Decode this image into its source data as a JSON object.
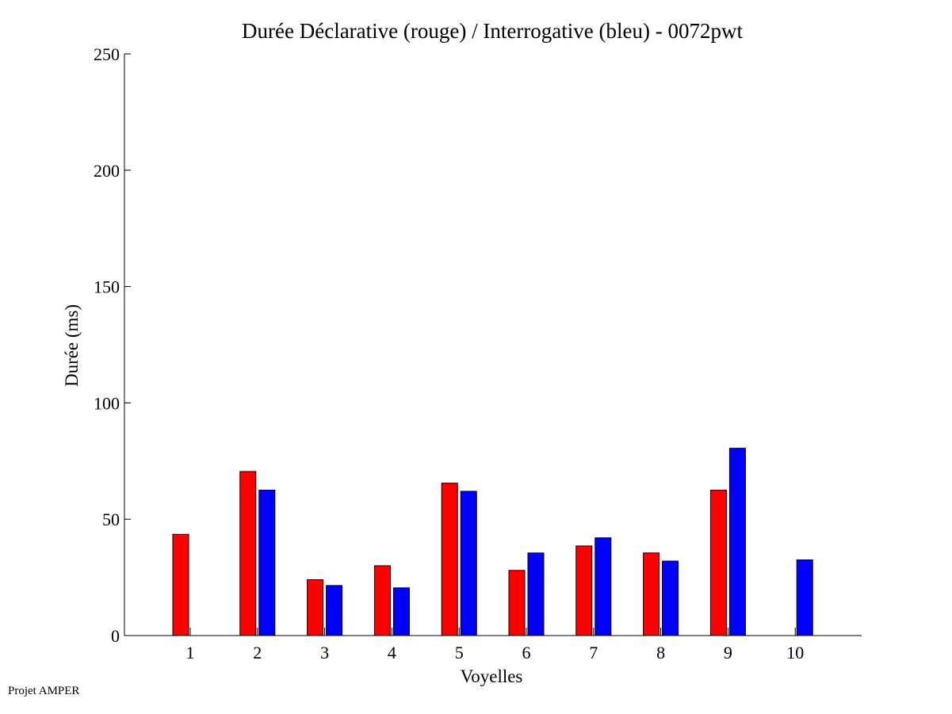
{
  "chart_data": {
    "type": "bar",
    "title": "Durée Déclarative (rouge) / Interrogative (bleu) - 0072pwt",
    "xlabel": "Voyelles",
    "ylabel": "Durée (ms)",
    "categories": [
      "1",
      "2",
      "3",
      "4",
      "5",
      "6",
      "7",
      "8",
      "9",
      "10"
    ],
    "ylim": [
      0,
      250
    ],
    "yticks": [
      0,
      50,
      100,
      150,
      200,
      250
    ],
    "grid": false,
    "series": [
      {
        "color": "#ff0000",
        "values": [
          43.5,
          70.5,
          24,
          30,
          65.5,
          28,
          38.5,
          35.5,
          62.5,
          null
        ]
      },
      {
        "color": "#0000ff",
        "values": [
          null,
          62.5,
          21.5,
          20.5,
          62,
          35.5,
          42,
          32,
          80.5,
          32.5
        ]
      }
    ]
  },
  "footer": {
    "note": "Projet AMPER"
  }
}
